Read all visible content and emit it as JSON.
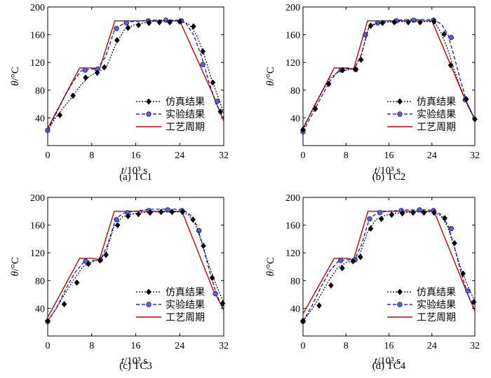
{
  "chart_data": [
    {
      "type": "line",
      "caption": "(a) TC1",
      "xlabel_var": "t",
      "xlabel_unit": "/10³ s",
      "ylabel_var": "θ",
      "ylabel_unit": "/°C",
      "xlim": [
        0,
        32
      ],
      "ylim": [
        0,
        200
      ],
      "xticks": [
        "0",
        "8",
        "16",
        "24",
        "32"
      ],
      "yticks": [
        "40",
        "80",
        "120",
        "160",
        "200"
      ],
      "legend_position": "bottom-right",
      "series": [
        {
          "name": "仿真结果",
          "color": "#000000",
          "style": "dotted",
          "marker": "diamond",
          "x": [
            0,
            1.4,
            3,
            4.6,
            6.1,
            7.6,
            9,
            10.6,
            12.3,
            14,
            15.7,
            17.4,
            19.1,
            20.7,
            22.4,
            24,
            25.7,
            27,
            28.3,
            29.6,
            31.2,
            32
          ],
          "y": [
            21,
            40,
            56,
            72,
            88,
            100,
            106,
            112,
            145,
            168,
            174,
            177,
            179,
            180,
            180,
            180,
            175,
            160,
            135,
            100,
            65,
            47
          ],
          "marker_x": [
            2.2,
            4.6,
            6.9,
            9,
            10.3,
            12.6,
            14.6,
            16.5,
            18.4,
            20.3,
            22.2,
            24,
            26.5,
            28.2,
            30,
            31.4
          ],
          "marker_y": [
            44,
            72,
            98,
            105,
            113,
            152,
            170,
            174,
            177,
            178,
            178,
            179,
            172,
            136,
            91,
            49
          ]
        },
        {
          "name": "实验结果",
          "color": "#0000cc",
          "style": "dashed",
          "marker": "circle",
          "x": [
            0,
            1.5,
            3,
            4.6,
            6.1,
            7.6,
            9,
            10.5,
            12.2,
            13.8,
            15.4,
            17,
            18.6,
            20.2,
            21.8,
            23.4,
            25,
            26.5,
            28,
            29.3,
            30.6,
            32
          ],
          "y": [
            22,
            46,
            70,
            92,
            108,
            110,
            111,
            128,
            168,
            176,
            179,
            180,
            181,
            181,
            181,
            181,
            178,
            160,
            128,
            92,
            60,
            40
          ],
          "marker_x": [
            0,
            6.8,
            9,
            12.5,
            14.3,
            18.3,
            21.5,
            24.3,
            28.2,
            30.8
          ],
          "marker_y": [
            22,
            109,
            110,
            169,
            177,
            180,
            181,
            180,
            117,
            64
          ]
        },
        {
          "name": "工艺周期",
          "color": "#cc0000",
          "style": "solid",
          "marker": "none",
          "x": [
            0,
            5.8,
            8.4,
            9.4,
            12.2,
            24,
            29.7,
            32
          ],
          "y": [
            25,
            112,
            112,
            110,
            180,
            180,
            80,
            35
          ]
        }
      ]
    },
    {
      "type": "line",
      "caption": "(b) TC2",
      "xlabel_var": "t",
      "xlabel_unit": "/10³ s",
      "ylabel_var": "θ",
      "ylabel_unit": "/°C",
      "xlim": [
        0,
        32
      ],
      "ylim": [
        0,
        200
      ],
      "xticks": [
        "0",
        "8",
        "16",
        "24",
        "32"
      ],
      "yticks": [
        "40",
        "80",
        "120",
        "160",
        "200"
      ],
      "legend_position": "bottom-right",
      "series": [
        {
          "name": "仿真结果",
          "color": "#000000",
          "style": "dotted",
          "marker": "diamond",
          "x": [
            0,
            1.6,
            3.3,
            5,
            6.7,
            8.3,
            9.6,
            10.8,
            12.2,
            13.8,
            15.6,
            17.5,
            19.4,
            21.3,
            23.2,
            24.5,
            25.7,
            26.9,
            28.2,
            29.5,
            30.8,
            32
          ],
          "y": [
            23,
            50,
            75,
            97,
            107,
            109,
            111,
            130,
            170,
            177,
            178,
            179,
            179,
            179,
            179,
            178,
            163,
            140,
            108,
            80,
            55,
            38
          ],
          "marker_x": [
            0,
            2.3,
            4.8,
            7.4,
            9.8,
            10.8,
            12.6,
            14.8,
            17,
            19.6,
            21.8,
            24.4,
            26.3,
            27.5,
            30.4,
            32
          ],
          "marker_y": [
            23,
            53,
            89,
            109,
            110,
            124,
            173,
            177,
            178,
            178,
            178,
            179,
            161,
            116,
            67,
            38
          ]
        },
        {
          "name": "实验结果",
          "color": "#0000cc",
          "style": "dashed",
          "marker": "circle",
          "x": [
            0,
            1.7,
            3.4,
            5,
            6.6,
            8.2,
            9.6,
            10.9,
            12.3,
            14,
            15.8,
            17.6,
            19.4,
            21.2,
            23,
            24.5,
            25.8,
            27,
            28.1,
            29.3,
            30.6,
            32
          ],
          "y": [
            20,
            45,
            70,
            93,
            108,
            111,
            111,
            132,
            172,
            178,
            180,
            181,
            182,
            182,
            182,
            181,
            175,
            160,
            130,
            95,
            60,
            38
          ],
          "marker_x": [
            0,
            7.1,
            9.8,
            11.6,
            13.9,
            17.4,
            20.6,
            24.3,
            27.6,
            30.2
          ],
          "marker_y": [
            20,
            109,
            110,
            160,
            177,
            180,
            181,
            181,
            156,
            66
          ]
        },
        {
          "name": "工艺周期",
          "color": "#cc0000",
          "style": "solid",
          "marker": "none",
          "x": [
            0,
            5.8,
            8.4,
            9.4,
            12,
            24,
            29.9,
            32
          ],
          "y": [
            25,
            112,
            112,
            110,
            180,
            180,
            72,
            38
          ]
        }
      ]
    },
    {
      "type": "line",
      "caption": "(c) TC3",
      "xlabel_var": "t",
      "xlabel_unit": "/10³ s",
      "ylabel_var": "θ",
      "ylabel_unit": "/°C",
      "xlim": [
        0,
        32
      ],
      "ylim": [
        0,
        200
      ],
      "xticks": [
        "0",
        "8",
        "16",
        "24",
        "32"
      ],
      "yticks": [
        "40",
        "80",
        "120",
        "160",
        "200"
      ],
      "legend_position": "bottom-right",
      "series": [
        {
          "name": "仿真结果",
          "color": "#000000",
          "style": "dotted",
          "marker": "diamond",
          "x": [
            0,
            1.6,
            3.2,
            4.8,
            6.4,
            8,
            9.4,
            10.6,
            12,
            13.6,
            15.3,
            17,
            18.8,
            20.5,
            22.3,
            24,
            25.6,
            26.9,
            28.1,
            29.4,
            30.7,
            32
          ],
          "y": [
            22,
            40,
            62,
            82,
            100,
            107,
            110,
            120,
            157,
            172,
            176,
            178,
            179,
            179,
            179,
            179,
            175,
            160,
            133,
            100,
            72,
            48
          ],
          "marker_x": [
            0,
            3,
            5.3,
            7.4,
            9.5,
            10.6,
            12.7,
            14.6,
            16.5,
            18.6,
            20.6,
            22.6,
            24.5,
            26.4,
            28.3,
            29.9,
            31.8
          ],
          "marker_y": [
            22,
            46,
            77,
            104,
            109,
            117,
            160,
            173,
            176,
            178,
            179,
            179,
            179,
            168,
            130,
            84,
            47
          ]
        },
        {
          "name": "实验结果",
          "color": "#0000cc",
          "style": "dashed",
          "marker": "circle",
          "x": [
            0,
            1.7,
            3.3,
            5,
            6.6,
            8.2,
            9.6,
            10.9,
            12.4,
            14,
            15.8,
            17.6,
            19.4,
            21.2,
            23,
            24.6,
            25.9,
            27.1,
            28.2,
            29.4,
            30.7,
            32
          ],
          "y": [
            20,
            42,
            68,
            92,
            107,
            109,
            110,
            132,
            170,
            178,
            180,
            182,
            183,
            183,
            183,
            182,
            175,
            160,
            130,
            94,
            60,
            37
          ],
          "marker_x": [
            0,
            6.9,
            9.6,
            12.5,
            14.5,
            18.4,
            21.8,
            24.4,
            27.5,
            30.5
          ],
          "marker_y": [
            21,
            108,
            110,
            168,
            178,
            181,
            182,
            181,
            152,
            61
          ]
        },
        {
          "name": "工艺周期",
          "color": "#cc0000",
          "style": "solid",
          "marker": "none",
          "x": [
            0,
            5.8,
            8.4,
            9.4,
            12.1,
            24.4,
            30.1,
            32
          ],
          "y": [
            27,
            112,
            112,
            110,
            180,
            180,
            66,
            38
          ]
        }
      ]
    },
    {
      "type": "line",
      "caption": "(d) TC4",
      "xlabel_var": "t",
      "xlabel_unit": "/10³ s",
      "ylabel_var": "θ",
      "ylabel_unit": "/°C",
      "xlim": [
        0,
        32
      ],
      "ylim": [
        0,
        200
      ],
      "xticks": [
        "0",
        "8",
        "16",
        "24",
        "32"
      ],
      "yticks": [
        "40",
        "80",
        "120",
        "160",
        "200"
      ],
      "legend_position": "bottom-right",
      "series": [
        {
          "name": "仿真结果",
          "color": "#000000",
          "style": "dotted",
          "marker": "diamond",
          "x": [
            0,
            1.6,
            3.2,
            4.8,
            6.4,
            8,
            9.4,
            10.6,
            12,
            13.6,
            15.3,
            17,
            18.8,
            20.5,
            22.3,
            24,
            25.6,
            26.9,
            28.1,
            29.4,
            30.7,
            32
          ],
          "y": [
            22,
            38,
            58,
            80,
            98,
            106,
            109,
            118,
            150,
            168,
            174,
            177,
            178,
            179,
            179,
            179,
            174,
            158,
            130,
            98,
            72,
            50
          ],
          "marker_x": [
            0,
            3,
            5.2,
            7.3,
            9.3,
            10.7,
            12.6,
            14.6,
            16.5,
            18.5,
            20.5,
            22.5,
            24.4,
            26.4,
            28.2,
            29.8,
            31.8
          ],
          "marker_y": [
            22,
            44,
            73,
            98,
            108,
            114,
            155,
            169,
            175,
            177,
            178,
            178,
            178,
            170,
            134,
            90,
            49
          ]
        },
        {
          "name": "实验结果",
          "color": "#0000cc",
          "style": "dashed",
          "marker": "circle",
          "x": [
            0,
            1.7,
            3.3,
            5,
            6.6,
            8.2,
            9.6,
            10.9,
            12.4,
            14,
            15.8,
            17.6,
            19.4,
            21.2,
            23,
            24.6,
            25.9,
            27.1,
            28.2,
            29.4,
            30.7,
            32
          ],
          "y": [
            21,
            44,
            70,
            94,
            108,
            110,
            110,
            132,
            170,
            178,
            180,
            181,
            182,
            182,
            182,
            181,
            174,
            158,
            128,
            92,
            60,
            37
          ],
          "marker_x": [
            0,
            7,
            9.7,
            12.4,
            14.3,
            18.3,
            21.7,
            24.3,
            27.6,
            30.7
          ],
          "marker_y": [
            21,
            109,
            110,
            169,
            178,
            181,
            182,
            181,
            155,
            65
          ]
        },
        {
          "name": "工艺周期",
          "color": "#cc0000",
          "style": "solid",
          "marker": "none",
          "x": [
            0,
            5.8,
            8.4,
            9.4,
            12.1,
            24.4,
            30.3,
            32
          ],
          "y": [
            32,
            112,
            112,
            110,
            180,
            180,
            67,
            36
          ]
        }
      ]
    }
  ]
}
